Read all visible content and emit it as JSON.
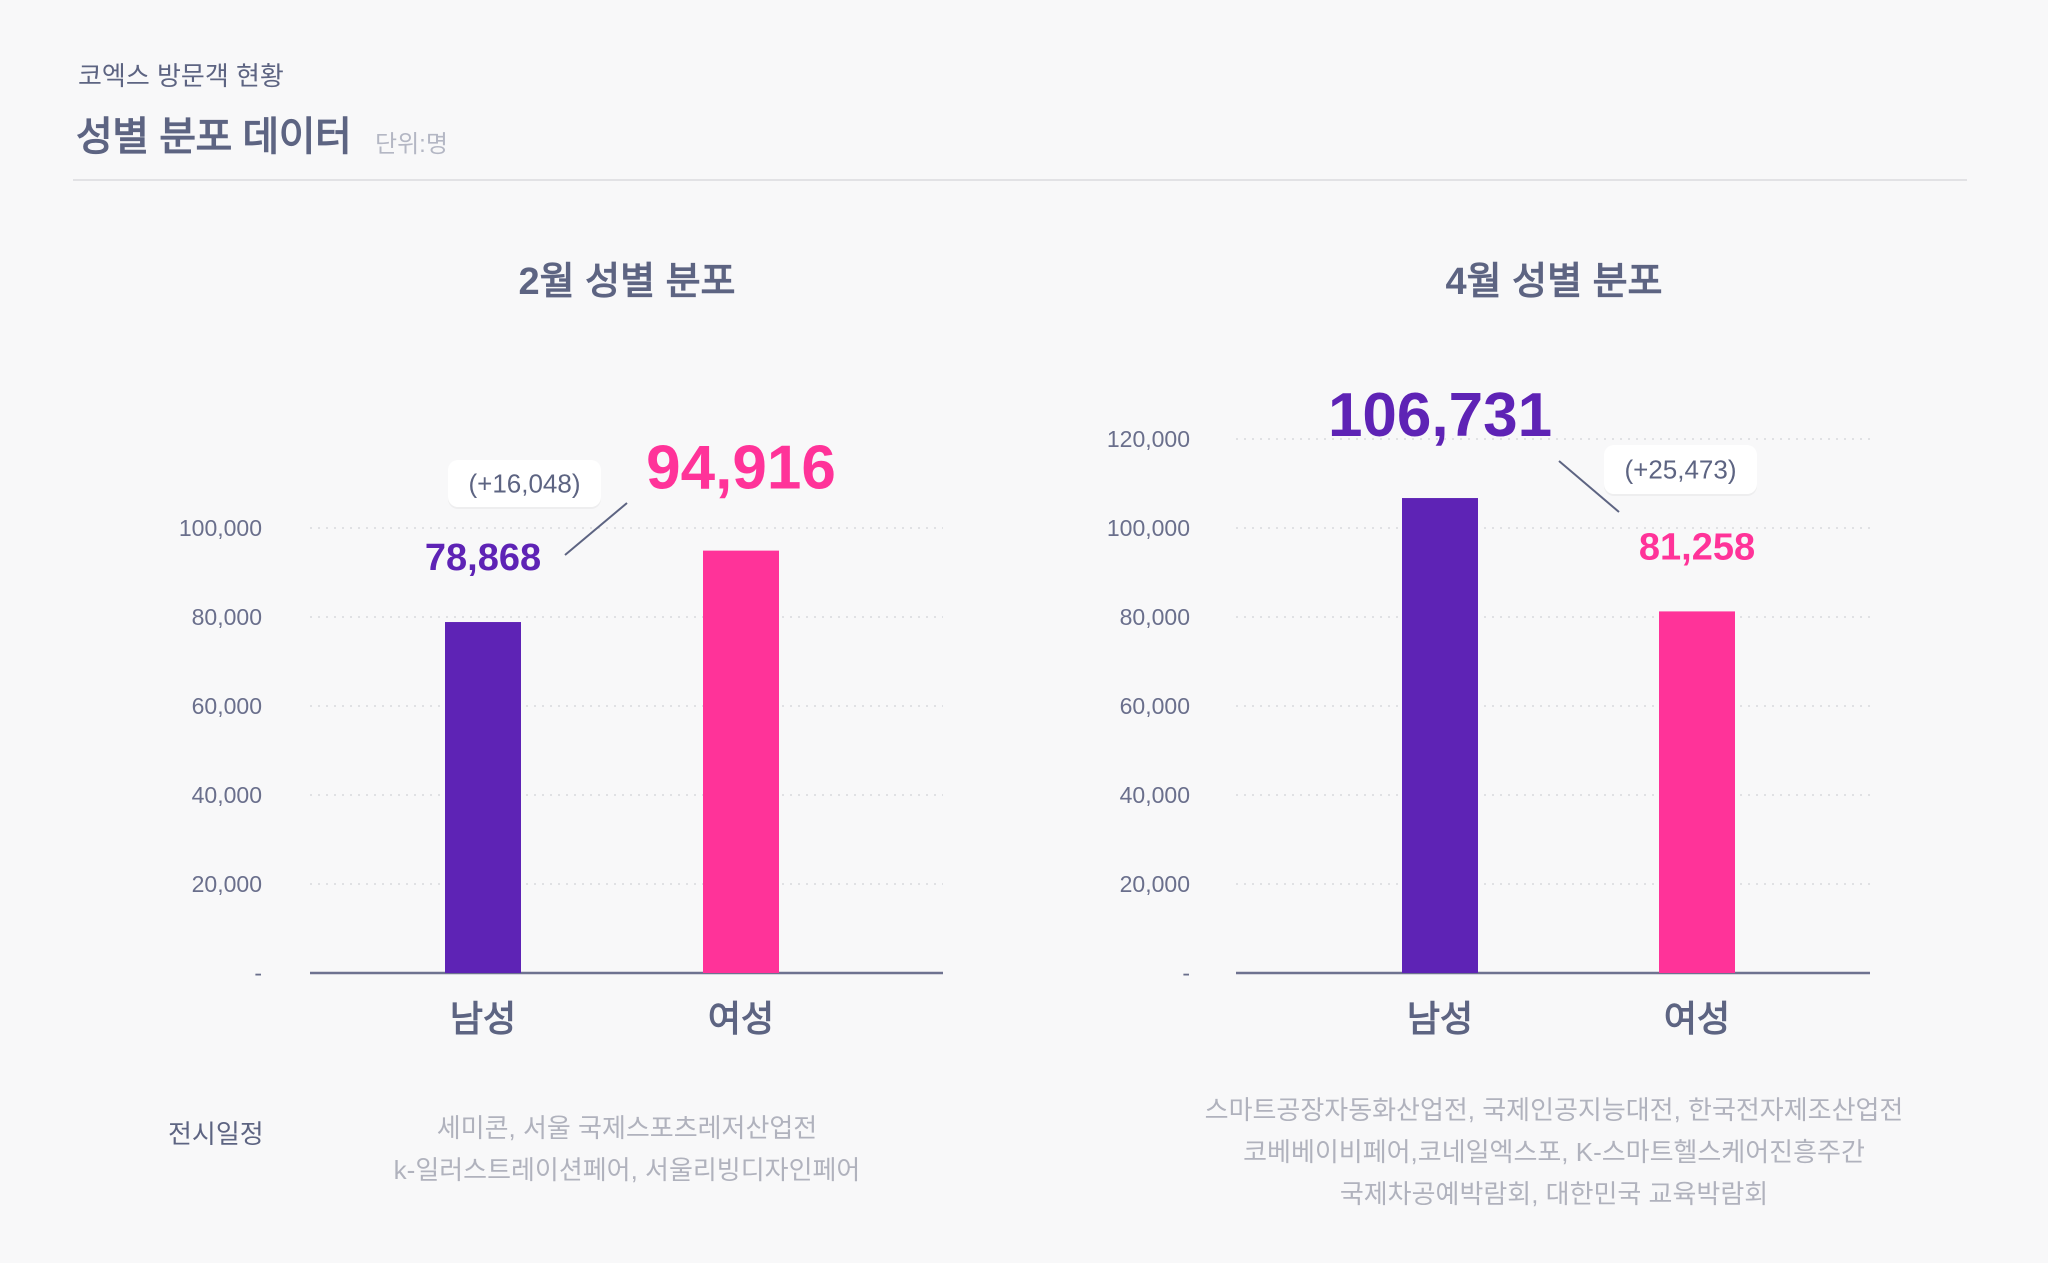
{
  "header": {
    "subtitle": "코엑스 방문객 현황",
    "title": "성별 분포 데이터",
    "unit": "단위:명"
  },
  "colors": {
    "male": "#5e23b5",
    "female": "#ff3399",
    "text": "#5d6482",
    "muted": "#b0b2bd"
  },
  "chart_data": [
    {
      "type": "bar",
      "title": "2월 성별 분포",
      "categories": [
        "남성",
        "여성"
      ],
      "values": [
        78868,
        94916
      ],
      "value_labels": [
        "78,868",
        "94,916"
      ],
      "ylim": [
        0,
        100000
      ],
      "yticks": [
        0,
        20000,
        40000,
        60000,
        80000,
        100000
      ],
      "ytick_labels": [
        "-",
        "20,000",
        "40,000",
        "60,000",
        "80,000",
        "100,000"
      ],
      "grid": true,
      "difference_label": "(+16,048)",
      "highlight": "여성",
      "xlabel": "",
      "ylabel": ""
    },
    {
      "type": "bar",
      "title": "4월 성별 분포",
      "categories": [
        "남성",
        "여성"
      ],
      "values": [
        106731,
        81258
      ],
      "value_labels": [
        "106,731",
        "81,258"
      ],
      "ylim": [
        0,
        120000
      ],
      "yticks": [
        0,
        20000,
        40000,
        60000,
        80000,
        100000,
        120000
      ],
      "ytick_labels": [
        "-",
        "20,000",
        "40,000",
        "60,000",
        "80,000",
        "100,000",
        "120,000"
      ],
      "grid": true,
      "difference_label": "(+25,473)",
      "highlight": "남성",
      "xlabel": "",
      "ylabel": ""
    }
  ],
  "schedule": {
    "label": "전시일정",
    "feb": [
      "세미콘, 서울 국제스포츠레저산업전",
      "k-일러스트레이션페어, 서울리빙디자인페어"
    ],
    "apr": [
      "스마트공장자동화산업전, 국제인공지능대전, 한국전자제조산업전",
      "코베베이비페어,코네일엑스포, K-스마트헬스케어진흥주간",
      "국제차공예박람회, 대한민국 교육박람회"
    ]
  }
}
